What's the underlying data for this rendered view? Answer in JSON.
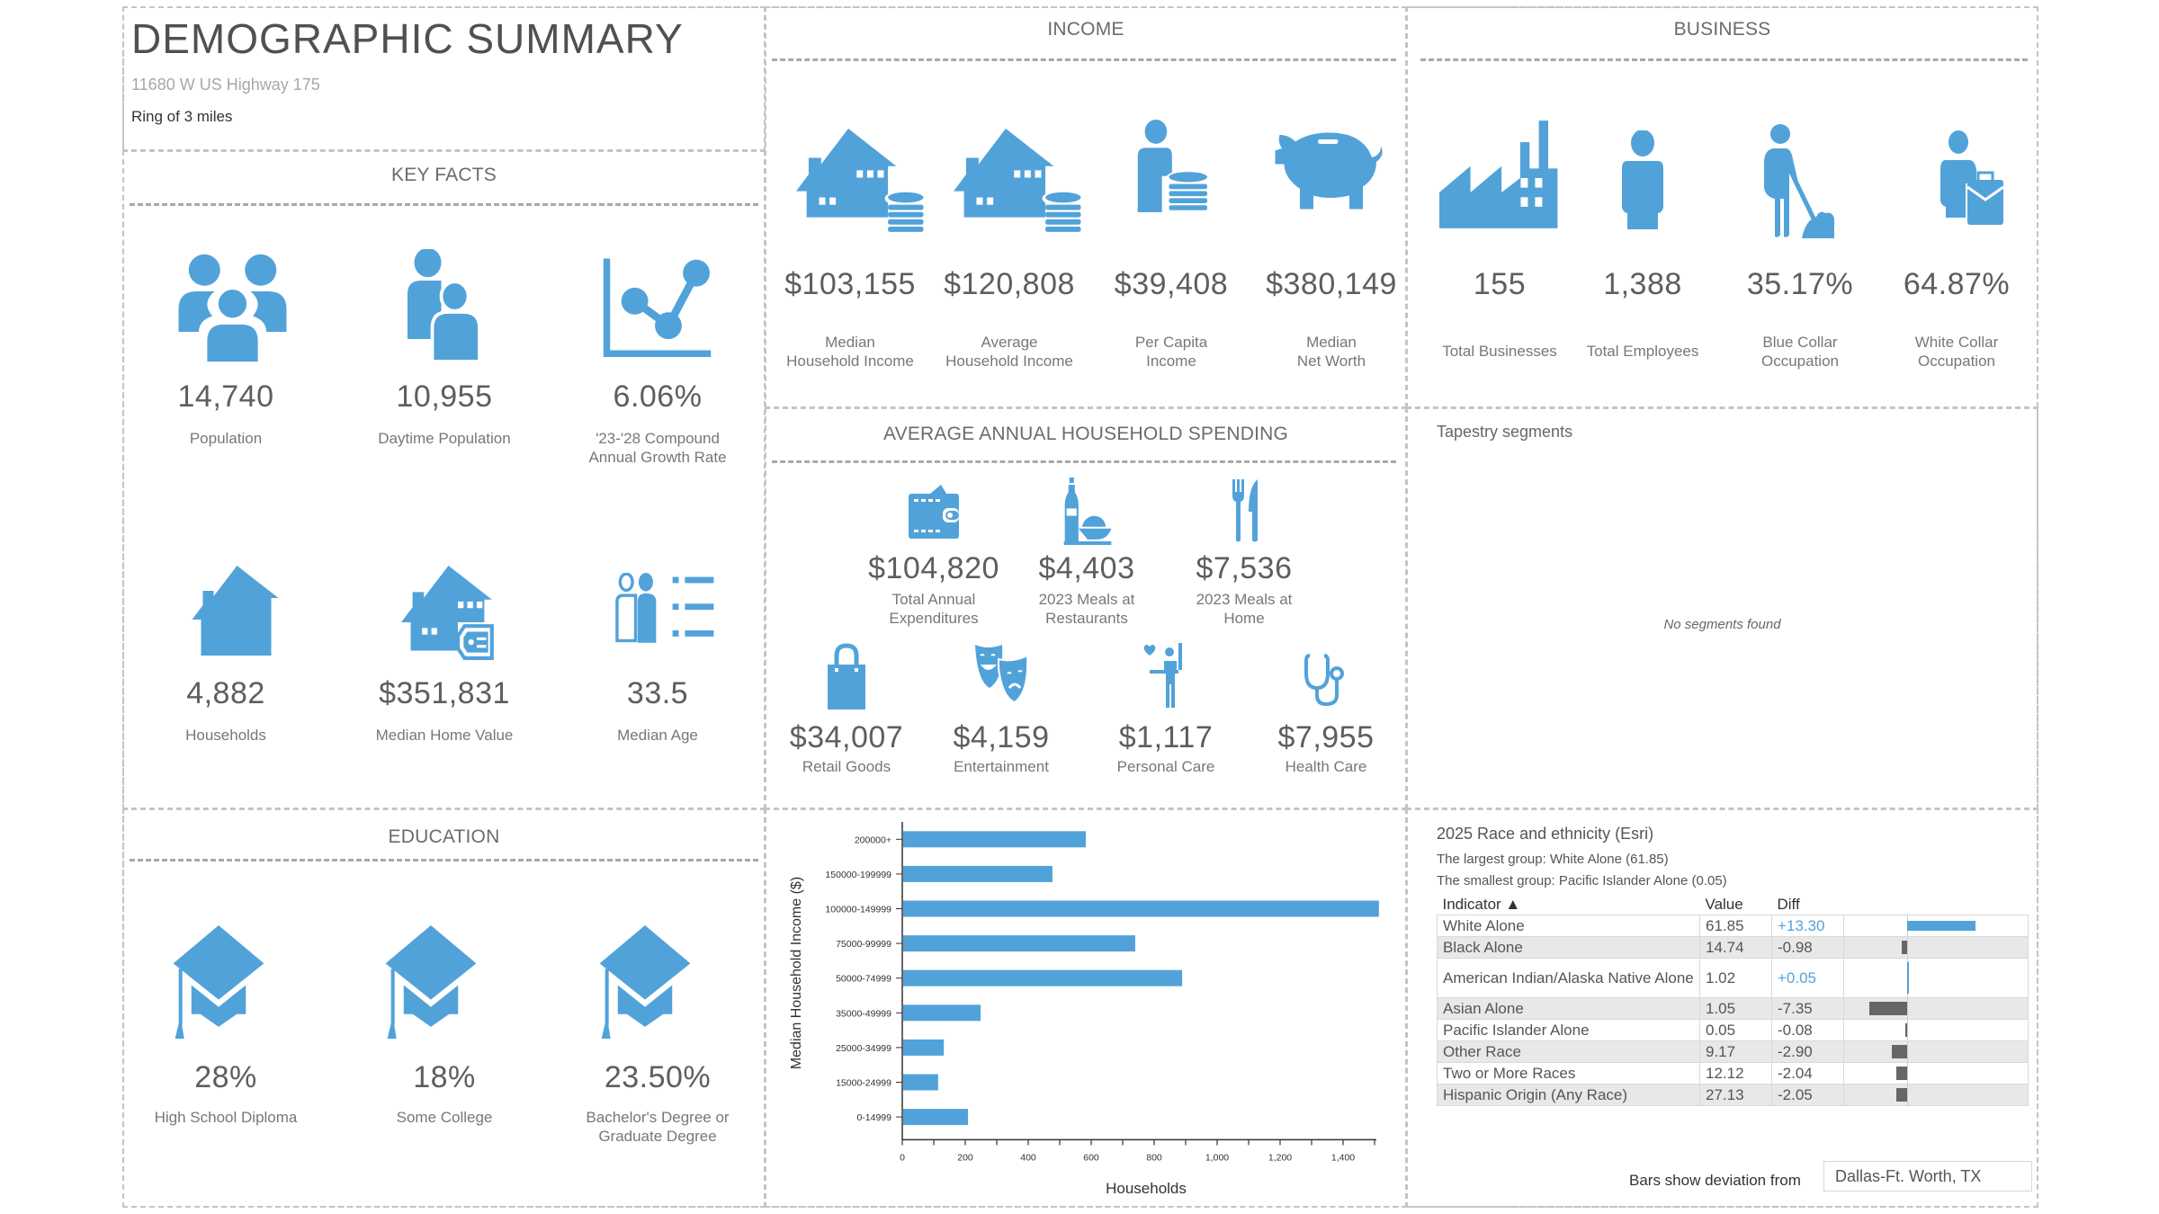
{
  "header": {
    "title": "DEMOGRAPHIC SUMMARY",
    "address": "11680 W US Highway 175",
    "ring": "Ring of 3 miles"
  },
  "colors": {
    "accent": "#52a2da",
    "negative_bar": "#666666",
    "border": "#c4c4c4"
  },
  "key_facts": {
    "title": "KEY FACTS",
    "items": [
      {
        "icon": "people-group-icon",
        "value": "14,740",
        "label": "Population"
      },
      {
        "icon": "daytime-people-icon",
        "value": "10,955",
        "label": "Daytime Population"
      },
      {
        "icon": "growth-chart-icon",
        "value": "6.06%",
        "label_line1": "'23-'28 Compound",
        "label_line2": "Annual Growth Rate"
      },
      {
        "icon": "house-icon",
        "value": "4,882",
        "label": "Households"
      },
      {
        "icon": "house-price-tag-icon",
        "value": "$351,831",
        "label": "Median Home Value"
      },
      {
        "icon": "age-list-icon",
        "value": "33.5",
        "label": "Median Age"
      }
    ]
  },
  "income": {
    "title": "INCOME",
    "items": [
      {
        "icon": "house-coins-icon",
        "value": "$103,155",
        "label_line1": "Median",
        "label_line2": "Household Income"
      },
      {
        "icon": "house-coins-icon",
        "value": "$120,808",
        "label_line1": "Average",
        "label_line2": "Household Income"
      },
      {
        "icon": "person-coins-icon",
        "value": "$39,408",
        "label_line1": "Per Capita",
        "label_line2": "Income"
      },
      {
        "icon": "piggy-bank-icon",
        "value": "$380,149",
        "label_line1": "Median",
        "label_line2": "Net Worth"
      }
    ]
  },
  "business": {
    "title": "BUSINESS",
    "items": [
      {
        "icon": "factory-icon",
        "value": "155",
        "label": "Total Businesses"
      },
      {
        "icon": "person-icon",
        "value": "1,388",
        "label": "Total Employees"
      },
      {
        "icon": "worker-shovel-icon",
        "value": "35.17%",
        "label_line1": "Blue Collar",
        "label_line2": "Occupation"
      },
      {
        "icon": "person-briefcase-icon",
        "value": "64.87%",
        "label_line1": "White Collar",
        "label_line2": "Occupation"
      }
    ]
  },
  "spending": {
    "title": "AVERAGE ANNUAL HOUSEHOLD SPENDING",
    "items": [
      {
        "icon": "wallet-icon",
        "value": "$104,820",
        "label_line1": "Total Annual",
        "label_line2": "Expenditures"
      },
      {
        "icon": "restaurant-meal-icon",
        "value": "$4,403",
        "label_line1": "2023 Meals at",
        "label_line2": "Restaurants"
      },
      {
        "icon": "fork-knife-icon",
        "value": "$7,536",
        "label_line1": "2023 Meals at",
        "label_line2": "Home"
      },
      {
        "icon": "shopping-bag-icon",
        "value": "$34,007",
        "label": "Retail Goods"
      },
      {
        "icon": "theater-masks-icon",
        "value": "$4,159",
        "label": "Entertainment"
      },
      {
        "icon": "personal-care-icon",
        "value": "$1,117",
        "label": "Personal Care"
      },
      {
        "icon": "stethoscope-icon",
        "value": "$7,955",
        "label": "Health Care"
      }
    ]
  },
  "tapestry": {
    "title": "Tapestry segments",
    "empty_message": "No segments found"
  },
  "education": {
    "title": "EDUCATION",
    "items": [
      {
        "icon": "graduation-cap-icon",
        "value": "28%",
        "label": "High School Diploma"
      },
      {
        "icon": "graduation-cap-icon",
        "value": "18%",
        "label": "Some College"
      },
      {
        "icon": "graduation-cap-icon",
        "value": "23.50%",
        "label_line1": "Bachelor's Degree or",
        "label_line2": "Graduate Degree"
      }
    ]
  },
  "chart_data": {
    "type": "bar",
    "orientation": "horizontal",
    "title": "",
    "xlabel": "Households",
    "ylabel": "Median Household Income ($)",
    "categories": [
      "200000+",
      "150000-199999",
      "100000-149999",
      "75000-99999",
      "50000-74999",
      "35000-49999",
      "25000-34999",
      "15000-24999",
      "0-14999"
    ],
    "values": [
      580,
      474,
      1511,
      737,
      886,
      246,
      129,
      111,
      206
    ],
    "xlim": [
      0,
      1500
    ],
    "xticks": [
      0,
      200,
      400,
      600,
      800,
      1000,
      1200,
      1400
    ],
    "xtick_labels": [
      "0",
      "200",
      "400",
      "600",
      "800",
      "1,000",
      "1,200",
      "1,400"
    ],
    "minor_ticks": [
      100,
      300,
      500,
      700,
      900,
      1100,
      1300,
      1500
    ],
    "grid": false,
    "color": "#52a2da"
  },
  "race": {
    "title": "2025 Race and ethnicity (Esri)",
    "largest": "The largest group: White Alone (61.85)",
    "smallest": "The smallest group: Pacific Islander Alone (0.05)",
    "columns": {
      "indicator": "Indicator ▲",
      "value": "Value",
      "diff": "Diff"
    },
    "rows": [
      {
        "indicator": "White Alone",
        "value": "61.85",
        "diff": "+13.30",
        "diff_num": 13.3
      },
      {
        "indicator": "Black Alone",
        "value": "14.74",
        "diff": "-0.98",
        "diff_num": -0.98
      },
      {
        "indicator": "American Indian/Alaska Native Alone",
        "value": "1.02",
        "diff": "+0.05",
        "diff_num": 0.05
      },
      {
        "indicator": "Asian Alone",
        "value": "1.05",
        "diff": "-7.35",
        "diff_num": -7.35
      },
      {
        "indicator": "Pacific Islander Alone",
        "value": "0.05",
        "diff": "-0.08",
        "diff_num": -0.08
      },
      {
        "indicator": "Other Race",
        "value": "9.17",
        "diff": "-2.90",
        "diff_num": -2.9
      },
      {
        "indicator": "Two or More Races",
        "value": "12.12",
        "diff": "-2.04",
        "diff_num": -2.04
      },
      {
        "indicator": "Hispanic Origin (Any Race)",
        "value": "27.13",
        "diff": "-2.05",
        "diff_num": -2.05
      }
    ],
    "deviation_label": "Bars show deviation from",
    "deviation_area": "Dallas-Ft. Worth, TX"
  }
}
